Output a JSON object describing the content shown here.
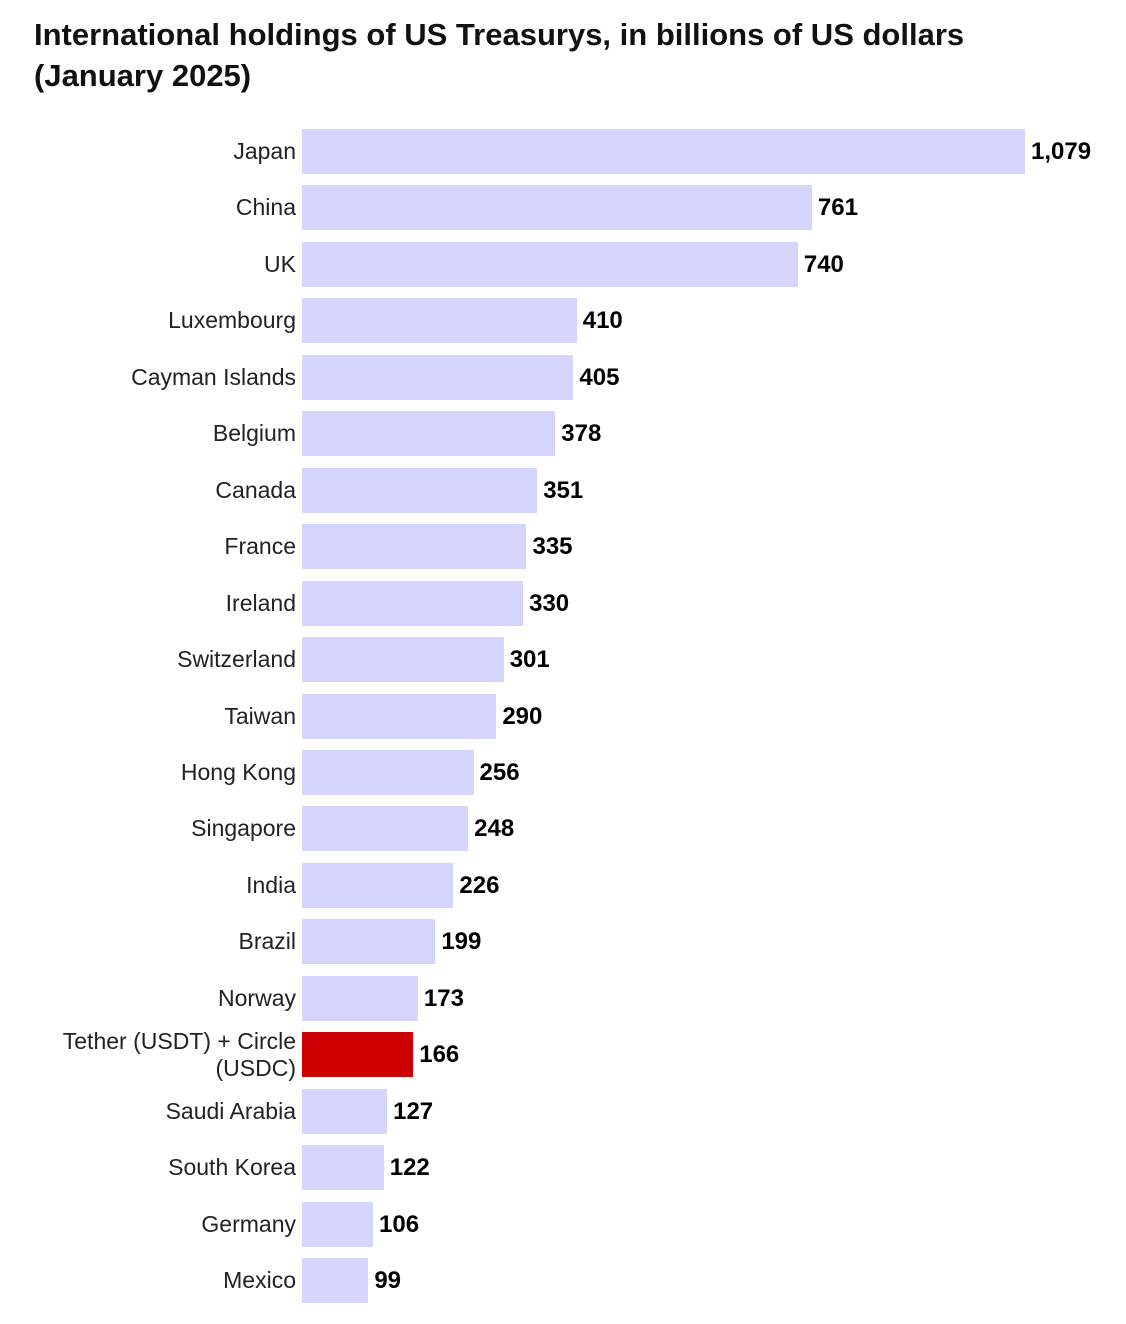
{
  "chart_data": {
    "type": "bar",
    "orientation": "horizontal",
    "title": "International holdings of US Treasurys, in billions of US dollars (January 2025)",
    "categories": [
      "Japan",
      "China",
      "UK",
      "Luxembourg",
      "Cayman Islands",
      "Belgium",
      "Canada",
      "France",
      "Ireland",
      "Switzerland",
      "Taiwan",
      "Hong Kong",
      "Singapore",
      "India",
      "Brazil",
      "Norway",
      "Tether (USDT) + Circle (USDC)",
      "Saudi Arabia",
      "South Korea",
      "Germany",
      "Mexico"
    ],
    "values": [
      1079,
      761,
      740,
      410,
      405,
      378,
      351,
      335,
      330,
      301,
      290,
      256,
      248,
      226,
      199,
      173,
      166,
      127,
      122,
      106,
      99
    ],
    "value_labels": [
      "1,079",
      "761",
      "740",
      "410",
      "405",
      "378",
      "351",
      "335",
      "330",
      "301",
      "290",
      "256",
      "248",
      "226",
      "199",
      "173",
      "166",
      "127",
      "122",
      "106",
      "99"
    ],
    "colors": [
      "#d5d5fd",
      "#d5d5fd",
      "#d5d5fd",
      "#d5d5fd",
      "#d5d5fd",
      "#d5d5fd",
      "#d5d5fd",
      "#d5d5fd",
      "#d5d5fd",
      "#d5d5fd",
      "#d5d5fd",
      "#d5d5fd",
      "#d5d5fd",
      "#d5d5fd",
      "#d5d5fd",
      "#d5d5fd",
      "#cc0000",
      "#d5d5fd",
      "#d5d5fd",
      "#d5d5fd",
      "#d5d5fd"
    ]
  }
}
